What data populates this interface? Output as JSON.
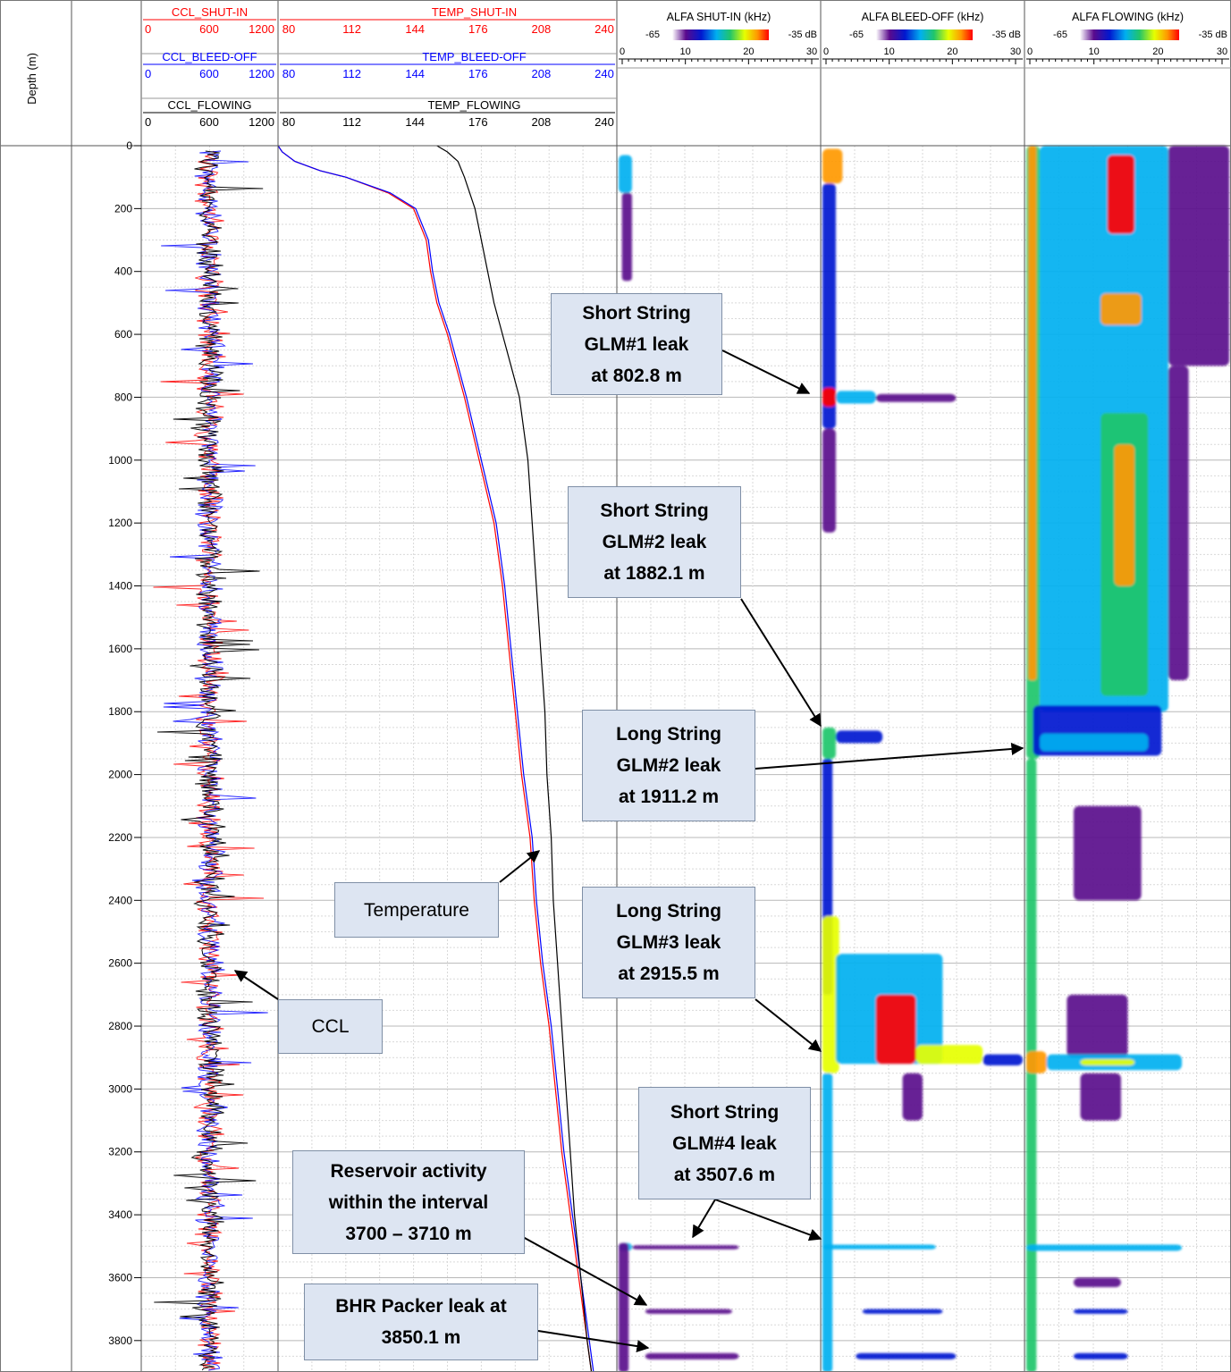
{
  "depth_axis": {
    "label": "Depth (m)",
    "ticks": [
      0,
      200,
      400,
      600,
      800,
      1000,
      1200,
      1400,
      1600,
      1800,
      2000,
      2200,
      2400,
      2600,
      2800,
      3000,
      3200,
      3400,
      3600,
      3800
    ],
    "tick_labels": [
      "0",
      "200",
      "400",
      "600",
      "800",
      "1000",
      "1200",
      "1400",
      "1600",
      "1800",
      "2000",
      "2200",
      "2400",
      "2600",
      "2800",
      "3000",
      "3200",
      "3400",
      "3600",
      "3800"
    ],
    "range": [
      0,
      3900
    ]
  },
  "headers": {
    "ccl": [
      {
        "name": "CCL_SHUT-IN",
        "color": "#ff0000",
        "scale": [
          "0",
          "600",
          "1200"
        ]
      },
      {
        "name": "CCL_BLEED-OFF",
        "color": "#0000ff",
        "scale": [
          "0",
          "600",
          "1200"
        ]
      },
      {
        "name": "CCL_FLOWING",
        "color": "#000000",
        "scale": [
          "0",
          "600",
          "1200"
        ]
      }
    ],
    "temp": [
      {
        "name": "TEMP_SHUT-IN",
        "color": "#ff0000",
        "scale": [
          "80",
          "112",
          "144",
          "176",
          "208",
          "240"
        ]
      },
      {
        "name": "TEMP_BLEED-OFF",
        "color": "#0000ff",
        "scale": [
          "80",
          "112",
          "144",
          "176",
          "208",
          "240"
        ]
      },
      {
        "name": "TEMP_FLOWING",
        "color": "#000000",
        "scale": [
          "80",
          "112",
          "144",
          "176",
          "208",
          "240"
        ]
      }
    ],
    "alfa": [
      {
        "name": "ALFA SHUT-IN (kHz)",
        "db_min": "-65",
        "db_max": "-35 dB",
        "scale": [
          "0",
          "10",
          "20",
          "30"
        ]
      },
      {
        "name": "ALFA BLEED-OFF (kHz)",
        "db_min": "-65",
        "db_max": "-35 dB",
        "scale": [
          "0",
          "10",
          "20",
          "30"
        ]
      },
      {
        "name": "ALFA FLOWING (kHz)",
        "db_min": "-65",
        "db_max": "-35 dB",
        "scale": [
          "0",
          "10",
          "20",
          "30"
        ]
      }
    ]
  },
  "colorscale": [
    "#ffffff",
    "#5a0a8c",
    "#0018d0",
    "#00b0f0",
    "#21c56a",
    "#e6ff00",
    "#ff9900",
    "#ff0000"
  ],
  "chart_data": {
    "type": "line",
    "title": "",
    "ylabel": "Depth (m)",
    "ylim": [
      0,
      3900
    ],
    "temperature": {
      "xlim": [
        80,
        240
      ],
      "series": [
        {
          "name": "TEMP_SHUT-IN",
          "color": "#ff0000",
          "depth": [
            0,
            20,
            50,
            80,
            100,
            150,
            200,
            300,
            400,
            500,
            600,
            800,
            1000,
            1200,
            1400,
            1600,
            1800,
            2000,
            2200,
            2400,
            2600,
            2800,
            3000,
            3200,
            3400,
            3600,
            3800,
            3900
          ],
          "values": [
            80,
            82,
            88,
            100,
            112,
            132,
            144,
            150,
            152,
            155,
            160,
            168,
            175,
            182,
            186,
            189,
            192,
            195,
            199,
            201,
            204,
            208,
            211,
            214,
            218,
            222,
            226,
            228
          ]
        },
        {
          "name": "TEMP_BLEED-OFF",
          "color": "#0000ff",
          "depth": [
            0,
            20,
            50,
            80,
            100,
            150,
            200,
            300,
            400,
            500,
            600,
            800,
            1000,
            1200,
            1400,
            1600,
            1800,
            2000,
            2200,
            2400,
            2600,
            2800,
            3000,
            3200,
            3400,
            3600,
            3800,
            3900
          ],
          "values": [
            80,
            82,
            88,
            100,
            112,
            133,
            145,
            151,
            153,
            156,
            161,
            169,
            176,
            183,
            187,
            190,
            193,
            196,
            200,
            202,
            205,
            209,
            212,
            215,
            219,
            223,
            227,
            229
          ]
        },
        {
          "name": "TEMP_FLOWING",
          "color": "#000000",
          "depth": [
            0,
            20,
            50,
            100,
            200,
            300,
            400,
            500,
            600,
            700,
            800,
            1000,
            1200,
            1400,
            1600,
            1800,
            2000,
            2200,
            2400,
            2600,
            2800,
            3000,
            3200,
            3400,
            3600,
            3800,
            3900
          ],
          "values": [
            155,
            160,
            165,
            168,
            173,
            176,
            179,
            182,
            186,
            190,
            194,
            198,
            200,
            202,
            204,
            206,
            207,
            209,
            210,
            212,
            214,
            216,
            218,
            220,
            223,
            226,
            228
          ]
        }
      ]
    },
    "ccl": {
      "xlim": [
        0,
        1200
      ],
      "baseline": 600,
      "series": [
        {
          "name": "CCL_SHUT-IN",
          "color": "#ff0000"
        },
        {
          "name": "CCL_BLEED-OFF",
          "color": "#0000ff"
        },
        {
          "name": "CCL_FLOWING",
          "color": "#000000"
        }
      ]
    },
    "noise": {
      "units": "kHz",
      "xlim": [
        0,
        30
      ],
      "db_range": [
        -65,
        -35
      ],
      "tracks": [
        {
          "name": "ALFA SHUT-IN (kHz)",
          "blobs": [
            {
              "d0": 30,
              "d1": 150,
              "f0": 0,
              "f1": 2,
              "i": 0.45
            },
            {
              "d0": 150,
              "d1": 430,
              "f0": 0.5,
              "f1": 2,
              "i": 0.15
            },
            {
              "d0": 3490,
              "d1": 3515,
              "f0": 0,
              "f1": 2,
              "i": 0.4
            },
            {
              "d0": 3497,
              "d1": 3510,
              "f0": 2,
              "f1": 18,
              "i": 0.2
            },
            {
              "d0": 3700,
              "d1": 3715,
              "f0": 4,
              "f1": 17,
              "i": 0.12
            },
            {
              "d0": 3840,
              "d1": 3860,
              "f0": 4,
              "f1": 18,
              "i": 0.12
            },
            {
              "d0": 3490,
              "d1": 3900,
              "f0": 0,
              "f1": 1.5,
              "i": 0.1
            }
          ]
        },
        {
          "name": "ALFA BLEED-OFF (kHz)",
          "blobs": [
            {
              "d0": 10,
              "d1": 120,
              "f0": 0,
              "f1": 3,
              "i": 0.85
            },
            {
              "d0": 120,
              "d1": 900,
              "f0": 0,
              "f1": 2,
              "i": 0.3
            },
            {
              "d0": 770,
              "d1": 830,
              "f0": 0,
              "f1": 2,
              "i": 0.95
            },
            {
              "d0": 780,
              "d1": 820,
              "f0": 2,
              "f1": 8,
              "i": 0.45
            },
            {
              "d0": 790,
              "d1": 815,
              "f0": 8,
              "f1": 20,
              "i": 0.2
            },
            {
              "d0": 900,
              "d1": 1230,
              "f0": 0,
              "f1": 2,
              "i": 0.15
            },
            {
              "d0": 1850,
              "d1": 1950,
              "f0": 0,
              "f1": 2,
              "i": 0.6
            },
            {
              "d0": 1860,
              "d1": 1900,
              "f0": 2,
              "f1": 9,
              "i": 0.25
            },
            {
              "d0": 1950,
              "d1": 2700,
              "f0": 0,
              "f1": 1.5,
              "i": 0.35
            },
            {
              "d0": 2450,
              "d1": 2950,
              "f0": 0,
              "f1": 2.5,
              "i": 0.75
            },
            {
              "d0": 2570,
              "d1": 2920,
              "f0": 2,
              "f1": 18,
              "i": 0.45
            },
            {
              "d0": 2700,
              "d1": 2920,
              "f0": 8,
              "f1": 14,
              "i": 0.95
            },
            {
              "d0": 2860,
              "d1": 2920,
              "f0": 14,
              "f1": 24,
              "i": 0.7
            },
            {
              "d0": 2890,
              "d1": 2925,
              "f0": 24,
              "f1": 30,
              "i": 0.3
            },
            {
              "d0": 2950,
              "d1": 3100,
              "f0": 12,
              "f1": 15,
              "i": 0.1
            },
            {
              "d0": 2950,
              "d1": 3900,
              "f0": 0,
              "f1": 1.5,
              "i": 0.4
            },
            {
              "d0": 3495,
              "d1": 3510,
              "f0": 0,
              "f1": 17,
              "i": 0.4
            },
            {
              "d0": 3700,
              "d1": 3715,
              "f0": 6,
              "f1": 18,
              "i": 0.25
            },
            {
              "d0": 3840,
              "d1": 3860,
              "f0": 5,
              "f1": 20,
              "i": 0.25
            }
          ]
        },
        {
          "name": "ALFA FLOWING (kHz)",
          "blobs": [
            {
              "d0": 0,
              "d1": 1950,
              "f0": 0,
              "f1": 2,
              "i": 0.6
            },
            {
              "d0": 0,
              "d1": 1700,
              "f0": 0.3,
              "f1": 1.5,
              "i": 0.85
            },
            {
              "d0": 0,
              "d1": 1800,
              "f0": 2,
              "f1": 21,
              "i": 0.45
            },
            {
              "d0": 0,
              "d1": 700,
              "f0": 21,
              "f1": 30,
              "i": 0.15
            },
            {
              "d0": 700,
              "d1": 1700,
              "f0": 21,
              "f1": 24,
              "i": 0.12
            },
            {
              "d0": 30,
              "d1": 280,
              "f0": 12,
              "f1": 16,
              "i": 0.95
            },
            {
              "d0": 470,
              "d1": 570,
              "f0": 11,
              "f1": 17,
              "i": 0.9
            },
            {
              "d0": 850,
              "d1": 1750,
              "f0": 11,
              "f1": 18,
              "i": 0.6
            },
            {
              "d0": 950,
              "d1": 1400,
              "f0": 13,
              "f1": 16,
              "i": 0.8
            },
            {
              "d0": 1780,
              "d1": 1940,
              "f0": 1,
              "f1": 20,
              "i": 0.3
            },
            {
              "d0": 1870,
              "d1": 1925,
              "f0": 2,
              "f1": 18,
              "i": 0.45
            },
            {
              "d0": 1950,
              "d1": 3900,
              "f0": 0,
              "f1": 1.5,
              "i": 0.5
            },
            {
              "d0": 2100,
              "d1": 2400,
              "f0": 7,
              "f1": 17,
              "i": 0.12
            },
            {
              "d0": 2700,
              "d1": 2900,
              "f0": 6,
              "f1": 15,
              "i": 0.2
            },
            {
              "d0": 2880,
              "d1": 2950,
              "f0": 0,
              "f1": 3,
              "i": 0.9
            },
            {
              "d0": 2890,
              "d1": 2940,
              "f0": 3,
              "f1": 23,
              "i": 0.45
            },
            {
              "d0": 2905,
              "d1": 2925,
              "f0": 8,
              "f1": 16,
              "i": 0.65
            },
            {
              "d0": 2950,
              "d1": 3100,
              "f0": 8,
              "f1": 14,
              "i": 0.15
            },
            {
              "d0": 3495,
              "d1": 3515,
              "f0": 0,
              "f1": 23,
              "i": 0.4
            },
            {
              "d0": 3600,
              "d1": 3630,
              "f0": 7,
              "f1": 14,
              "i": 0.15
            },
            {
              "d0": 3700,
              "d1": 3715,
              "f0": 7,
              "f1": 15,
              "i": 0.25
            },
            {
              "d0": 3840,
              "d1": 3860,
              "f0": 7,
              "f1": 15,
              "i": 0.25
            }
          ]
        }
      ]
    }
  },
  "callouts": [
    {
      "id": "ss-glm1",
      "lines": [
        "Short String",
        "GLM#1 leak",
        "at 802.8 m"
      ]
    },
    {
      "id": "ss-glm2",
      "lines": [
        "Short String",
        "GLM#2 leak",
        "at 1882.1 m"
      ]
    },
    {
      "id": "ls-glm2",
      "lines": [
        "Long String",
        "GLM#2 leak",
        "at 1911.2 m"
      ]
    },
    {
      "id": "ls-glm3",
      "lines": [
        "Long String",
        "GLM#3 leak",
        "at 2915.5 m"
      ]
    },
    {
      "id": "ss-glm4",
      "lines": [
        "Short String",
        "GLM#4 leak",
        "at 3507.6 m"
      ]
    },
    {
      "id": "reservoir",
      "lines": [
        "Reservoir activity",
        "within the interval",
        "3700 – 3710 m"
      ]
    },
    {
      "id": "bhr",
      "lines": [
        "BHR Packer leak at",
        "3850.1 m"
      ]
    },
    {
      "id": "temperature",
      "lines": [
        "Temperature"
      ]
    },
    {
      "id": "ccl",
      "lines": [
        "CCL"
      ]
    }
  ]
}
